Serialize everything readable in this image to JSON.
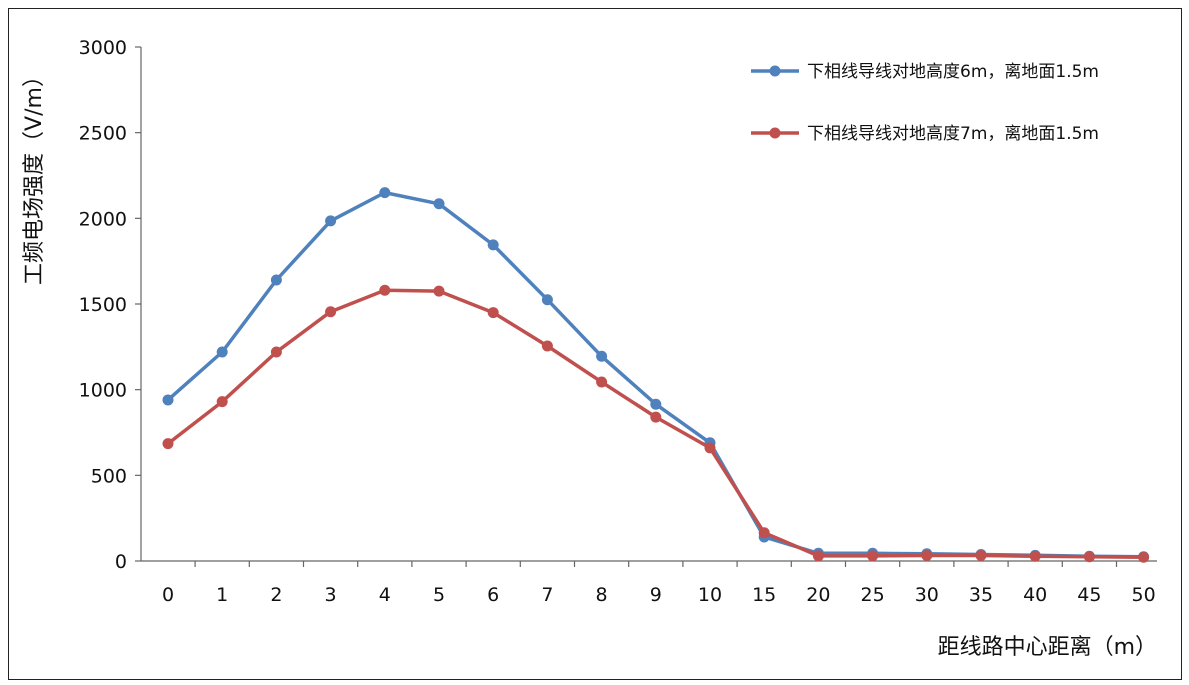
{
  "chart_data": {
    "type": "line",
    "title": "",
    "xlabel": "距线路中心距离（m）",
    "ylabel": "工频电场强度（V/m）",
    "categories": [
      "0",
      "1",
      "2",
      "3",
      "4",
      "5",
      "6",
      "7",
      "8",
      "9",
      "10",
      "15",
      "20",
      "25",
      "30",
      "35",
      "40",
      "45",
      "50"
    ],
    "ylim": [
      0,
      3000
    ],
    "yticks": [
      0,
      500,
      1000,
      1500,
      2000,
      2500,
      3000
    ],
    "grid": false,
    "legend_position": "top-right",
    "series": [
      {
        "name": "下相线导线对地高度6m，离地面1.5m",
        "color": "#4f81bd",
        "values": [
          940,
          1220,
          1640,
          1985,
          2150,
          2085,
          1845,
          1525,
          1195,
          915,
          690,
          140,
          45,
          45,
          42,
          38,
          33,
          28,
          25
        ]
      },
      {
        "name": "下相线导线对地高度7m，离地面1.5m",
        "color": "#c0504d",
        "values": [
          685,
          930,
          1220,
          1455,
          1580,
          1575,
          1450,
          1255,
          1045,
          840,
          660,
          165,
          30,
          30,
          32,
          32,
          28,
          25,
          22
        ]
      }
    ]
  }
}
